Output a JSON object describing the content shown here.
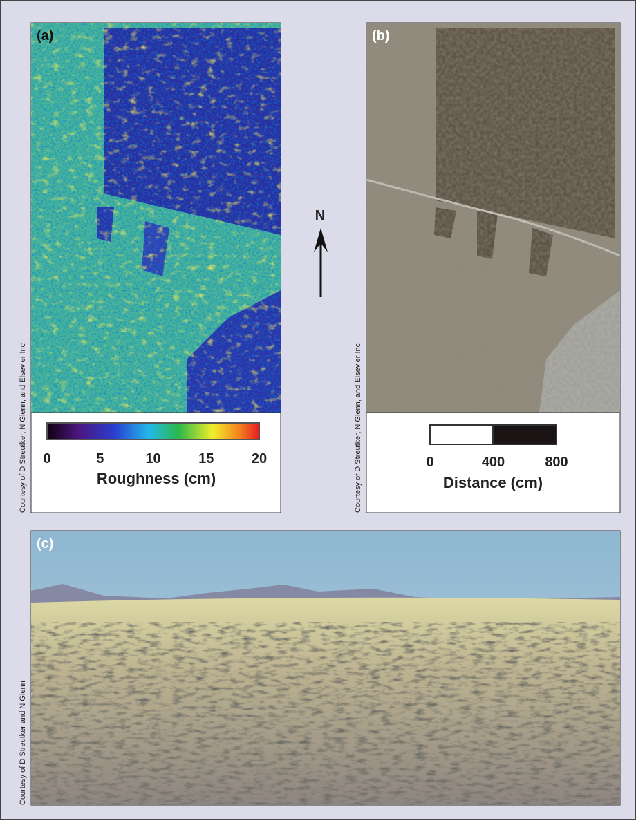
{
  "north": "N",
  "panels": [
    {
      "label": "(a)",
      "credit": "Courtesy of D Streutker, N Glenn, and Elsevier Inc",
      "legend": {
        "title": "Roughness (cm)",
        "ticks": [
          0,
          5,
          10,
          15,
          20
        ]
      }
    },
    {
      "label": "(b)",
      "credit": "Courtesy of D Streutker, N Glenn, and Elsevier Inc",
      "legend": {
        "title": "Distance (cm)",
        "ticks": [
          0,
          400,
          800
        ]
      }
    },
    {
      "label": "(c)",
      "credit": "Courtesy of D Streutker and N Glenn"
    }
  ]
}
